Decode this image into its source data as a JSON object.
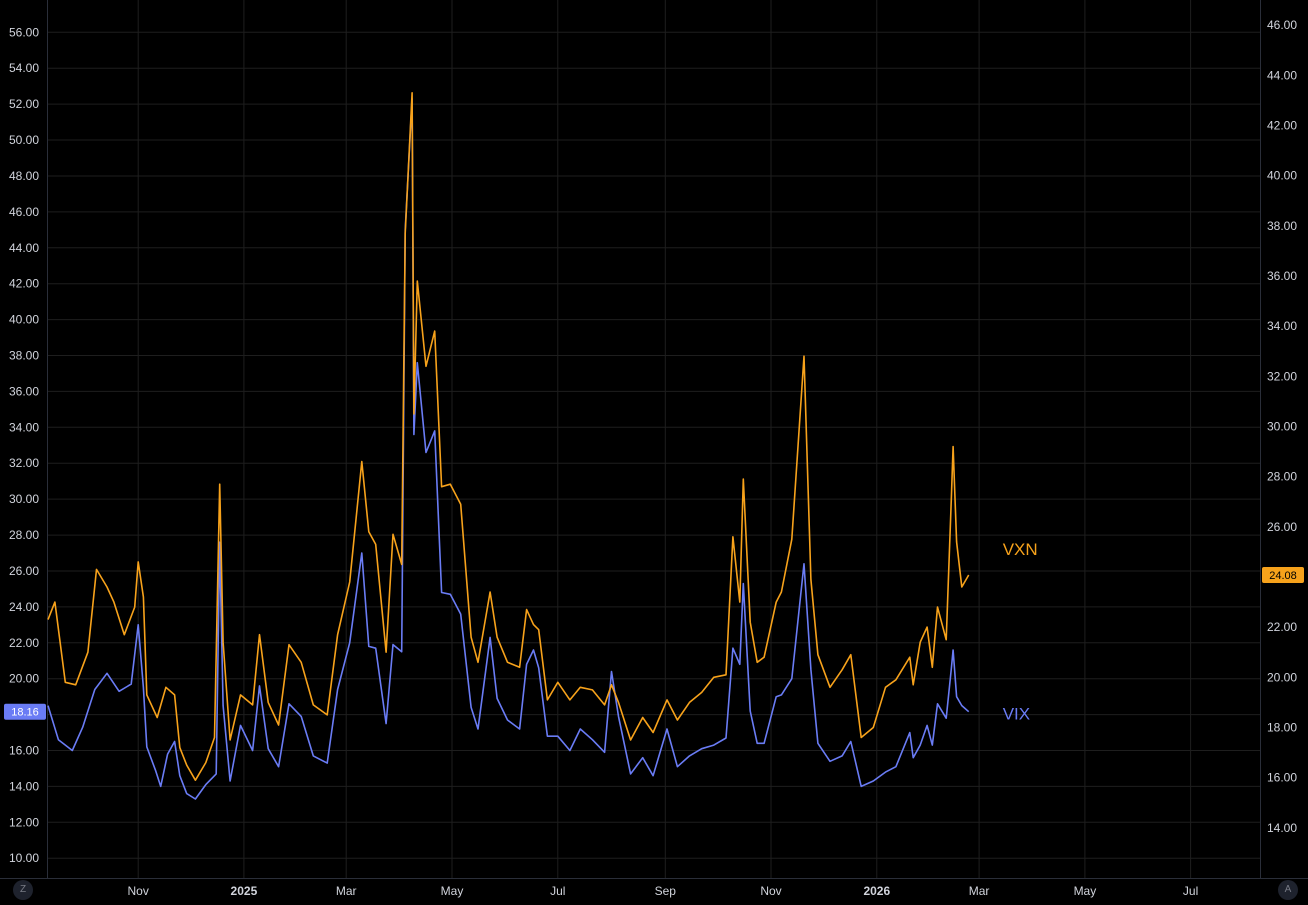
{
  "corner_buttons": {
    "left": "Z",
    "right": "A"
  },
  "colors": {
    "background": "#000000",
    "grid": "#1e1e1e",
    "axis_text": "#d1d4dc",
    "vix": "#6a7cf5",
    "vxn": "#f7a21b"
  },
  "chart_data": {
    "type": "line",
    "x_ticks": [
      "Nov",
      "2025",
      "Mar",
      "May",
      "Jul",
      "Sep",
      "Nov",
      "2026",
      "Mar",
      "May",
      "Jul"
    ],
    "x_range": [
      "2024-09-10",
      "2026-08-10"
    ],
    "left_axis": {
      "ticks": [
        "10.00",
        "12.00",
        "14.00",
        "16.00",
        "18.00",
        "20.00",
        "22.00",
        "24.00",
        "26.00",
        "28.00",
        "30.00",
        "32.00",
        "34.00",
        "36.00",
        "38.00",
        "40.00",
        "42.00",
        "44.00",
        "46.00",
        "48.00",
        "50.00",
        "52.00",
        "54.00",
        "56.00"
      ],
      "ylim": [
        8.9,
        57.8
      ]
    },
    "right_axis": {
      "ticks": [
        "14.00",
        "16.00",
        "18.00",
        "20.00",
        "22.00",
        "24.00",
        "26.00",
        "28.00",
        "30.00",
        "32.00",
        "34.00",
        "36.00",
        "38.00",
        "40.00",
        "42.00",
        "44.00",
        "46.00"
      ],
      "ylim": [
        12.0,
        47.0
      ]
    },
    "grid": true,
    "series": [
      {
        "name": "VIX",
        "axis": "left",
        "color": "#6a7cf5",
        "last_value": "18.16",
        "points": [
          [
            "2024-09-10",
            18.5
          ],
          [
            "2024-09-16",
            16.6
          ],
          [
            "2024-09-24",
            16.0
          ],
          [
            "2024-09-30",
            17.3
          ],
          [
            "2024-10-07",
            19.4
          ],
          [
            "2024-10-14",
            20.3
          ],
          [
            "2024-10-21",
            19.3
          ],
          [
            "2024-10-28",
            19.7
          ],
          [
            "2024-11-01",
            23.0
          ],
          [
            "2024-11-04",
            19.5
          ],
          [
            "2024-11-06",
            16.2
          ],
          [
            "2024-11-11",
            14.9
          ],
          [
            "2024-11-14",
            14.0
          ],
          [
            "2024-11-18",
            15.8
          ],
          [
            "2024-11-22",
            16.5
          ],
          [
            "2024-11-25",
            14.6
          ],
          [
            "2024-11-29",
            13.6
          ],
          [
            "2024-12-04",
            13.3
          ],
          [
            "2024-12-10",
            14.1
          ],
          [
            "2024-12-16",
            14.7
          ],
          [
            "2024-12-18",
            27.6
          ],
          [
            "2024-12-20",
            18.5
          ],
          [
            "2024-12-24",
            14.3
          ],
          [
            "2024-12-30",
            17.4
          ],
          [
            "2025-01-06",
            16.0
          ],
          [
            "2025-01-10",
            19.6
          ],
          [
            "2025-01-15",
            16.1
          ],
          [
            "2025-01-21",
            15.1
          ],
          [
            "2025-01-27",
            18.6
          ],
          [
            "2025-02-03",
            17.9
          ],
          [
            "2025-02-10",
            15.7
          ],
          [
            "2025-02-18",
            15.3
          ],
          [
            "2025-02-24",
            19.4
          ],
          [
            "2025-03-03",
            22.0
          ],
          [
            "2025-03-10",
            27.0
          ],
          [
            "2025-03-14",
            21.8
          ],
          [
            "2025-03-18",
            21.7
          ],
          [
            "2025-03-24",
            17.5
          ],
          [
            "2025-03-28",
            21.9
          ],
          [
            "2025-04-02",
            21.5
          ],
          [
            "2025-04-04",
            45.0
          ],
          [
            "2025-04-08",
            52.3
          ],
          [
            "2025-04-09",
            33.6
          ],
          [
            "2025-04-11",
            37.6
          ],
          [
            "2025-04-16",
            32.6
          ],
          [
            "2025-04-21",
            33.8
          ],
          [
            "2025-04-25",
            24.8
          ],
          [
            "2025-04-30",
            24.7
          ],
          [
            "2025-05-06",
            23.6
          ],
          [
            "2025-05-12",
            18.4
          ],
          [
            "2025-05-16",
            17.2
          ],
          [
            "2025-05-23",
            22.3
          ],
          [
            "2025-05-27",
            18.9
          ],
          [
            "2025-06-02",
            17.7
          ],
          [
            "2025-06-09",
            17.2
          ],
          [
            "2025-06-13",
            20.8
          ],
          [
            "2025-06-17",
            21.6
          ],
          [
            "2025-06-20",
            20.6
          ],
          [
            "2025-06-25",
            16.8
          ],
          [
            "2025-07-01",
            16.8
          ],
          [
            "2025-07-08",
            16.0
          ],
          [
            "2025-07-14",
            17.2
          ],
          [
            "2025-07-21",
            16.6
          ],
          [
            "2025-07-28",
            15.9
          ],
          [
            "2025-08-01",
            20.4
          ],
          [
            "2025-08-05",
            17.9
          ],
          [
            "2025-08-12",
            14.7
          ],
          [
            "2025-08-19",
            15.6
          ],
          [
            "2025-08-25",
            14.6
          ],
          [
            "2025-09-02",
            17.2
          ],
          [
            "2025-09-08",
            15.1
          ],
          [
            "2025-09-15",
            15.7
          ],
          [
            "2025-09-22",
            16.1
          ],
          [
            "2025-09-29",
            16.3
          ],
          [
            "2025-10-06",
            16.7
          ],
          [
            "2025-10-10",
            21.7
          ],
          [
            "2025-10-14",
            20.8
          ],
          [
            "2025-10-16",
            25.3
          ],
          [
            "2025-10-20",
            18.2
          ],
          [
            "2025-10-24",
            16.4
          ],
          [
            "2025-10-28",
            16.4
          ],
          [
            "2025-11-04",
            19.0
          ],
          [
            "2025-11-07",
            19.1
          ],
          [
            "2025-11-13",
            20.0
          ],
          [
            "2025-11-20",
            26.4
          ],
          [
            "2025-11-24",
            20.5
          ],
          [
            "2025-11-28",
            16.4
          ],
          [
            "2025-12-05",
            15.4
          ],
          [
            "2025-12-12",
            15.7
          ],
          [
            "2025-12-17",
            16.5
          ],
          [
            "2025-12-23",
            14.0
          ],
          [
            "2025-12-30",
            14.3
          ],
          [
            "2026-01-06",
            14.8
          ],
          [
            "2026-01-12",
            15.1
          ],
          [
            "2026-01-20",
            17.0
          ],
          [
            "2026-01-22",
            15.6
          ],
          [
            "2026-01-26",
            16.3
          ],
          [
            "2026-01-30",
            17.4
          ],
          [
            "2026-02-02",
            16.3
          ],
          [
            "2026-02-05",
            18.6
          ],
          [
            "2026-02-10",
            17.8
          ],
          [
            "2026-02-13",
            20.6
          ],
          [
            "2026-02-14",
            21.6
          ],
          [
            "2026-02-16",
            19.0
          ],
          [
            "2026-02-19",
            18.5
          ],
          [
            "2026-02-23",
            18.16
          ]
        ]
      },
      {
        "name": "VXN",
        "axis": "right",
        "color": "#f7a21b",
        "last_value": "24.08",
        "points": [
          [
            "2024-09-10",
            22.3
          ],
          [
            "2024-09-14",
            23.0
          ],
          [
            "2024-09-20",
            19.8
          ],
          [
            "2024-09-26",
            19.7
          ],
          [
            "2024-10-03",
            21.0
          ],
          [
            "2024-10-08",
            24.3
          ],
          [
            "2024-10-14",
            23.6
          ],
          [
            "2024-10-18",
            23.0
          ],
          [
            "2024-10-24",
            21.7
          ],
          [
            "2024-10-30",
            22.8
          ],
          [
            "2024-11-01",
            24.6
          ],
          [
            "2024-11-04",
            23.2
          ],
          [
            "2024-11-06",
            19.3
          ],
          [
            "2024-11-12",
            18.4
          ],
          [
            "2024-11-17",
            19.6
          ],
          [
            "2024-11-22",
            19.3
          ],
          [
            "2024-11-25",
            17.2
          ],
          [
            "2024-11-29",
            16.5
          ],
          [
            "2024-12-04",
            15.9
          ],
          [
            "2024-12-10",
            16.6
          ],
          [
            "2024-12-15",
            17.6
          ],
          [
            "2024-12-18",
            27.7
          ],
          [
            "2024-12-20",
            21.4
          ],
          [
            "2024-12-24",
            17.5
          ],
          [
            "2024-12-30",
            19.3
          ],
          [
            "2025-01-06",
            18.9
          ],
          [
            "2025-01-10",
            21.7
          ],
          [
            "2025-01-15",
            19.0
          ],
          [
            "2025-01-21",
            18.1
          ],
          [
            "2025-01-27",
            21.3
          ],
          [
            "2025-02-03",
            20.6
          ],
          [
            "2025-02-10",
            18.9
          ],
          [
            "2025-02-18",
            18.5
          ],
          [
            "2025-02-24",
            21.7
          ],
          [
            "2025-03-03",
            23.8
          ],
          [
            "2025-03-10",
            28.6
          ],
          [
            "2025-03-14",
            25.8
          ],
          [
            "2025-03-18",
            25.3
          ],
          [
            "2025-03-24",
            21.0
          ],
          [
            "2025-03-28",
            25.7
          ],
          [
            "2025-04-02",
            24.5
          ],
          [
            "2025-04-04",
            37.7
          ],
          [
            "2025-04-08",
            43.3
          ],
          [
            "2025-04-09",
            30.5
          ],
          [
            "2025-04-11",
            35.8
          ],
          [
            "2025-04-16",
            32.4
          ],
          [
            "2025-04-21",
            33.8
          ],
          [
            "2025-04-25",
            27.6
          ],
          [
            "2025-04-30",
            27.7
          ],
          [
            "2025-05-06",
            26.9
          ],
          [
            "2025-05-12",
            21.6
          ],
          [
            "2025-05-16",
            20.6
          ],
          [
            "2025-05-23",
            23.4
          ],
          [
            "2025-05-27",
            21.6
          ],
          [
            "2025-06-02",
            20.6
          ],
          [
            "2025-06-09",
            20.4
          ],
          [
            "2025-06-13",
            22.7
          ],
          [
            "2025-06-17",
            22.1
          ],
          [
            "2025-06-20",
            21.9
          ],
          [
            "2025-06-25",
            19.1
          ],
          [
            "2025-07-01",
            19.8
          ],
          [
            "2025-07-08",
            19.1
          ],
          [
            "2025-07-14",
            19.6
          ],
          [
            "2025-07-21",
            19.5
          ],
          [
            "2025-07-28",
            18.9
          ],
          [
            "2025-08-01",
            19.7
          ],
          [
            "2025-08-05",
            19.0
          ],
          [
            "2025-08-12",
            17.5
          ],
          [
            "2025-08-19",
            18.4
          ],
          [
            "2025-08-25",
            17.8
          ],
          [
            "2025-09-02",
            19.1
          ],
          [
            "2025-09-08",
            18.3
          ],
          [
            "2025-09-15",
            19.0
          ],
          [
            "2025-09-22",
            19.4
          ],
          [
            "2025-09-29",
            20.0
          ],
          [
            "2025-10-06",
            20.1
          ],
          [
            "2025-10-10",
            25.6
          ],
          [
            "2025-10-14",
            23.0
          ],
          [
            "2025-10-16",
            27.9
          ],
          [
            "2025-10-20",
            22.2
          ],
          [
            "2025-10-24",
            20.6
          ],
          [
            "2025-10-28",
            20.8
          ],
          [
            "2025-11-04",
            23.0
          ],
          [
            "2025-11-07",
            23.4
          ],
          [
            "2025-11-13",
            25.5
          ],
          [
            "2025-11-20",
            32.8
          ],
          [
            "2025-11-24",
            23.9
          ],
          [
            "2025-11-28",
            20.9
          ],
          [
            "2025-12-05",
            19.6
          ],
          [
            "2025-12-12",
            20.3
          ],
          [
            "2025-12-17",
            20.9
          ],
          [
            "2025-12-23",
            17.6
          ],
          [
            "2025-12-30",
            18.0
          ],
          [
            "2026-01-06",
            19.6
          ],
          [
            "2026-01-12",
            19.9
          ],
          [
            "2026-01-20",
            20.8
          ],
          [
            "2026-01-22",
            19.7
          ],
          [
            "2026-01-26",
            21.4
          ],
          [
            "2026-01-30",
            22.0
          ],
          [
            "2026-02-02",
            20.4
          ],
          [
            "2026-02-05",
            22.8
          ],
          [
            "2026-02-10",
            21.5
          ],
          [
            "2026-02-13",
            27.2
          ],
          [
            "2026-02-14",
            29.2
          ],
          [
            "2026-02-16",
            25.4
          ],
          [
            "2026-02-19",
            23.6
          ],
          [
            "2026-02-23",
            24.08
          ]
        ]
      }
    ]
  }
}
